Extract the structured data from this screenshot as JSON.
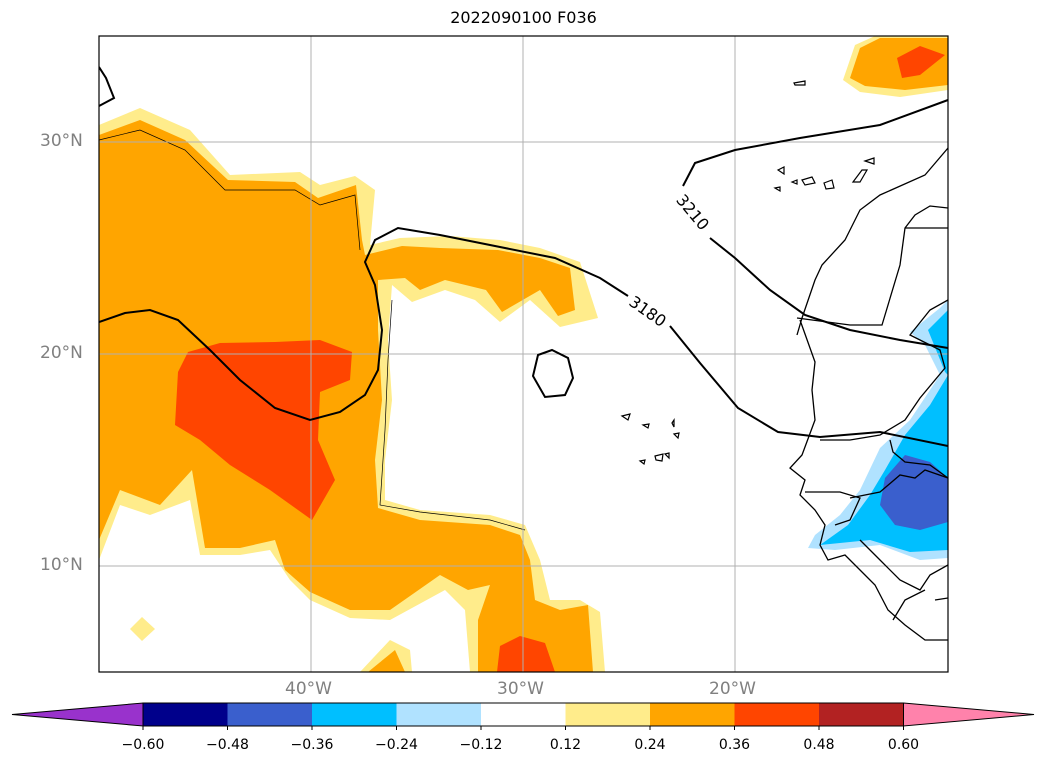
{
  "title": "2022090100 F036",
  "map": {
    "lat_labels": [
      "30°N",
      "20°N",
      "10°N"
    ],
    "lon_labels": [
      "40°W",
      "30°W",
      "20°W"
    ],
    "contour_labels": [
      "3210",
      "3180"
    ],
    "extent": {
      "lon_min": -50,
      "lon_max": -10,
      "lat_min": 5,
      "lat_max": 35
    }
  },
  "colorbar": {
    "ticks": [
      "−0.60",
      "−0.48",
      "−0.36",
      "−0.24",
      "−0.12",
      "0.12",
      "0.24",
      "0.36",
      "0.48",
      "0.60"
    ],
    "colors": [
      "#9932cc",
      "#00008b",
      "#3a5fcd",
      "#00bfff",
      "#b0e2ff",
      "#ffffff",
      "#ffec8b",
      "#ffa500",
      "#ff4500",
      "#b22222",
      "#ff82ab"
    ]
  }
}
